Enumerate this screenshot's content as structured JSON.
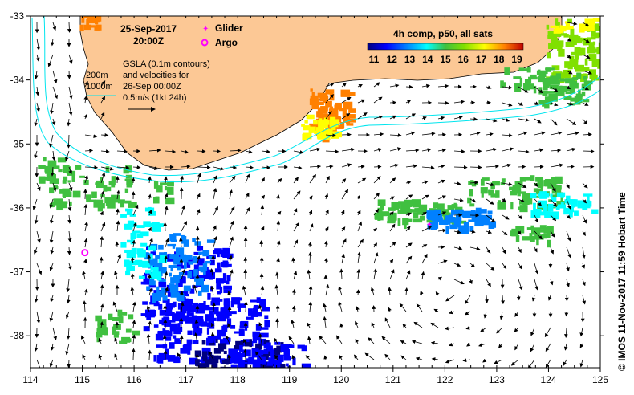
{
  "map": {
    "date": "25-Sep-2017",
    "time": "20:00Z",
    "legend": {
      "glider_label": "Glider",
      "argo_label": "Argo",
      "glider_color": "#ff00ff",
      "argo_color": "#ff00ff"
    },
    "contour_labels": [
      "200m",
      "1000m"
    ],
    "gsla_note": [
      "GSLA (0.1m contours)",
      "and velocities for",
      "26-Sep 00:00Z",
      "0.5m/s (1kt 24h)"
    ],
    "colorbar": {
      "title": "4h comp, p50, all sats",
      "ticks": [
        "11",
        "12",
        "13",
        "14",
        "15",
        "16",
        "17",
        "18",
        "19"
      ],
      "colors": [
        "#00007f",
        "#0000ff",
        "#0080ff",
        "#00ffff",
        "#40c040",
        "#80e000",
        "#ffff00",
        "#ff8000",
        "#c00000"
      ]
    },
    "x_ticks": [
      "114",
      "115",
      "116",
      "117",
      "118",
      "119",
      "120",
      "121",
      "122",
      "123",
      "124",
      "125"
    ],
    "y_ticks": [
      "-33",
      "-34",
      "-35",
      "-36",
      "-37",
      "-38"
    ],
    "credit": "© IMOS 11-Nov-2017 11:59 Hobart Time",
    "land_color": "#fcc895",
    "contour_color": "#00e5ee",
    "argo_float": {
      "lon": 115.05,
      "lat": -36.7
    },
    "glider": {
      "lon": 121.7,
      "lat": -36.25
    }
  }
}
